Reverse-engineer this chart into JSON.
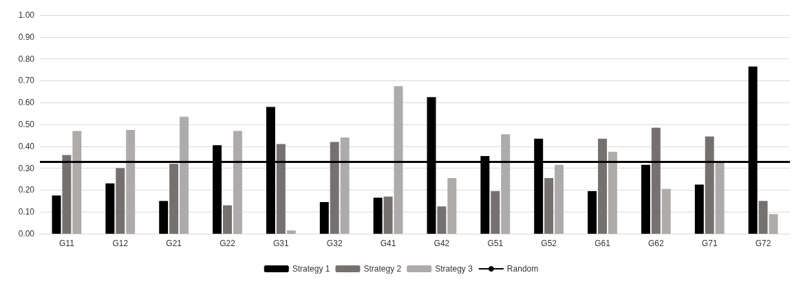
{
  "chart_data": {
    "type": "bar",
    "categories": [
      "G11",
      "G12",
      "G21",
      "G22",
      "G31",
      "G32",
      "G41",
      "G42",
      "G51",
      "G52",
      "G61",
      "G62",
      "G71",
      "G72"
    ],
    "series": [
      {
        "name": "Strategy 1",
        "color": "#000000",
        "values": [
          0.175,
          0.23,
          0.15,
          0.405,
          0.58,
          0.145,
          0.165,
          0.625,
          0.355,
          0.435,
          0.195,
          0.315,
          0.225,
          0.765
        ]
      },
      {
        "name": "Strategy 2",
        "color": "#767171",
        "values": [
          0.36,
          0.3,
          0.32,
          0.13,
          0.41,
          0.42,
          0.17,
          0.125,
          0.195,
          0.255,
          0.435,
          0.485,
          0.445,
          0.15
        ]
      },
      {
        "name": "Strategy 3",
        "color": "#aeabab",
        "values": [
          0.47,
          0.475,
          0.535,
          0.47,
          0.015,
          0.44,
          0.675,
          0.255,
          0.455,
          0.315,
          0.375,
          0.205,
          0.33,
          0.09
        ]
      }
    ],
    "ref_lines": [
      {
        "axis": "y",
        "value": 0.333,
        "label": "Random",
        "color": "#000000",
        "line_style": "solid"
      }
    ],
    "ylim": [
      0,
      1
    ],
    "yticks": [
      {
        "value": 0,
        "label": "0.00"
      },
      {
        "value": 0.1,
        "label": "0.10"
      },
      {
        "value": 0.2,
        "label": "0.20"
      },
      {
        "value": 0.3,
        "label": "0.30"
      },
      {
        "value": 0.4,
        "label": "0.40"
      },
      {
        "value": 0.5,
        "label": "0.50"
      },
      {
        "value": 0.6,
        "label": "0.60"
      },
      {
        "value": 0.7,
        "label": "0.70"
      },
      {
        "value": 0.8,
        "label": "0.80"
      },
      {
        "value": 0.9,
        "label": "0.90"
      },
      {
        "value": 1,
        "label": "1.00"
      }
    ],
    "grid": "y",
    "legend": "bottom"
  }
}
